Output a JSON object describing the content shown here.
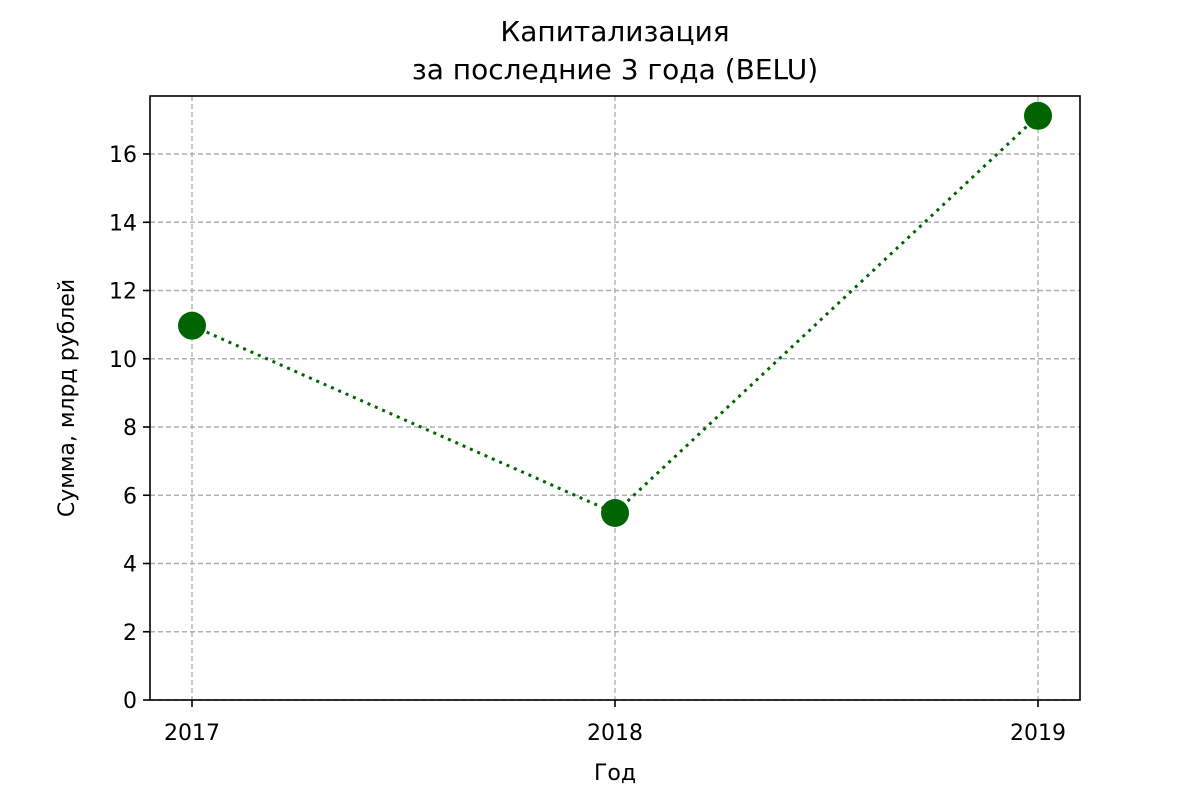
{
  "chart_data": {
    "type": "line",
    "title_lines": [
      "Капитализация",
      "за последние 3 года (BELU)"
    ],
    "xlabel": "Год",
    "ylabel": "Сумма, млрд рублей",
    "x": [
      "2017",
      "2018",
      "2019"
    ],
    "series": [
      {
        "values": [
          10.97,
          5.48,
          17.12
        ],
        "color": "#006400",
        "line_style": "dotted",
        "marker": "circle"
      }
    ],
    "ylim": [
      0,
      17.7
    ],
    "yticks": [
      0,
      2,
      4,
      6,
      8,
      10,
      12,
      14,
      16
    ],
    "grid": true,
    "grid_style": "dashed",
    "grid_color": "#b0b0b0",
    "legend": false
  }
}
